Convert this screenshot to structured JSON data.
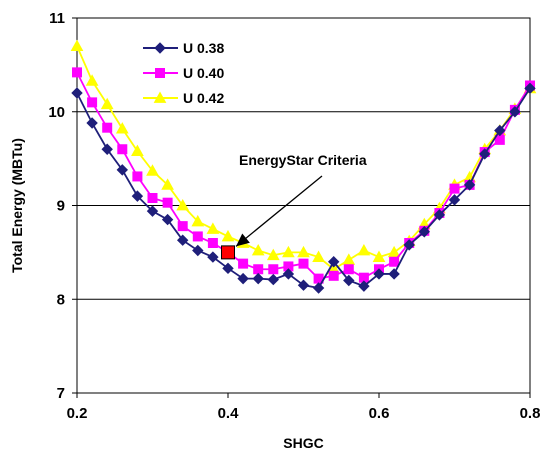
{
  "chart_data": {
    "type": "line",
    "title": "",
    "xlabel": "SHGC",
    "ylabel": "Total Energy (MBTu)",
    "xlim": [
      0.2,
      0.8
    ],
    "ylim": [
      7,
      11
    ],
    "xticks": [
      "0.2",
      "0.4",
      "0.6",
      "0.8"
    ],
    "yticks": [
      "7",
      "8",
      "9",
      "10",
      "11"
    ],
    "xtick_values": [
      0.2,
      0.4,
      0.6,
      0.8
    ],
    "ytick_values": [
      7,
      8,
      9,
      10,
      11
    ],
    "grid": "horizontal",
    "legend_position": "top-left",
    "x": [
      0.2,
      0.22,
      0.24,
      0.26,
      0.28,
      0.3,
      0.32,
      0.34,
      0.36,
      0.38,
      0.4,
      0.42,
      0.44,
      0.46,
      0.48,
      0.5,
      0.52,
      0.54,
      0.56,
      0.58,
      0.6,
      0.62,
      0.64,
      0.66,
      0.68,
      0.7,
      0.72,
      0.74,
      0.76,
      0.78,
      0.8
    ],
    "series": [
      {
        "name": "U 0.38",
        "color": "#1f1f7a",
        "marker": "diamond",
        "values": [
          10.2,
          9.88,
          9.6,
          9.38,
          9.1,
          8.94,
          8.85,
          8.63,
          8.52,
          8.45,
          8.33,
          8.22,
          8.22,
          8.21,
          8.27,
          8.15,
          8.12,
          8.4,
          8.2,
          8.14,
          8.27,
          8.27,
          8.58,
          8.72,
          8.9,
          9.06,
          9.22,
          9.55,
          9.8,
          10.0,
          10.25
        ]
      },
      {
        "name": "U 0.40",
        "color": "#ff00ff",
        "marker": "square",
        "values": [
          10.42,
          10.1,
          9.83,
          9.6,
          9.31,
          9.08,
          9.03,
          8.78,
          8.67,
          8.6,
          8.5,
          8.38,
          8.32,
          8.32,
          8.35,
          8.38,
          8.22,
          8.25,
          8.32,
          8.23,
          8.32,
          8.4,
          8.6,
          8.73,
          8.92,
          9.18,
          9.22,
          9.57,
          9.7,
          10.02,
          10.28
        ]
      },
      {
        "name": "U 0.42",
        "color": "#ffff00",
        "marker": "triangle",
        "values": [
          10.7,
          10.33,
          10.08,
          9.82,
          9.58,
          9.37,
          9.22,
          9.0,
          8.83,
          8.75,
          8.67,
          8.6,
          8.52,
          8.47,
          8.5,
          8.5,
          8.45,
          8.32,
          8.42,
          8.52,
          8.45,
          8.5,
          8.62,
          8.8,
          8.97,
          9.22,
          9.3,
          9.6,
          9.8,
          10.03,
          10.25
        ]
      }
    ],
    "annotation": {
      "text": "EnergyStar Criteria",
      "point": {
        "x": 0.4,
        "y": 8.5
      },
      "marker_color": "#ff0000"
    }
  }
}
